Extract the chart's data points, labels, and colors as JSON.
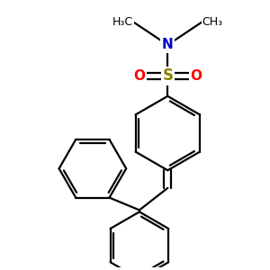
{
  "bg_color": "#ffffff",
  "bond_color": "#000000",
  "S_color": "#8B8000",
  "O_color": "#ff0000",
  "N_color": "#0000cc",
  "line_width": 1.6,
  "figsize": [
    3.0,
    3.0
  ],
  "dpi": 100,
  "xlim": [
    0.0,
    1.0
  ],
  "ylim": [
    0.0,
    1.0
  ]
}
